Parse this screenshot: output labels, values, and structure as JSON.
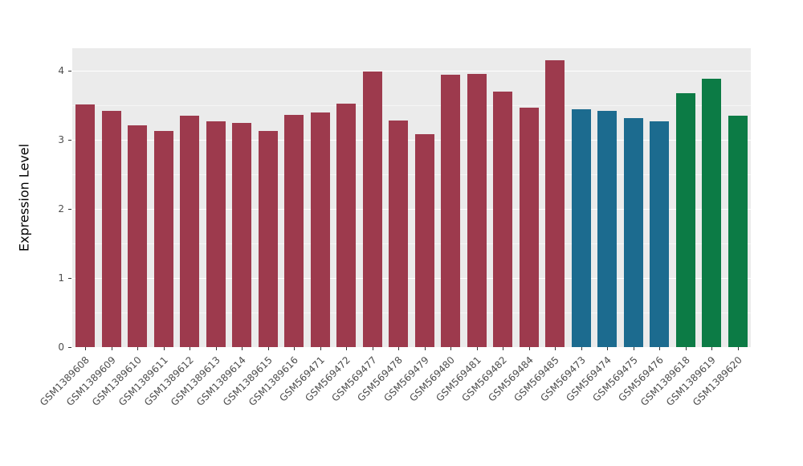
{
  "chart_data": {
    "type": "bar",
    "title": "",
    "xlabel": "",
    "ylabel": "Expression Level",
    "ylim": [
      0,
      4.33
    ],
    "yticks": [
      0,
      1,
      2,
      3,
      4
    ],
    "yticks_minor": [
      0.5,
      1.5,
      2.5,
      3.5
    ],
    "grid": "on",
    "legend": "none",
    "panel_background": "#ebebeb",
    "gridline_color": "#ffffff",
    "categories": [
      "GSM1389608",
      "GSM1389609",
      "GSM1389610",
      "GSM1389611",
      "GSM1389612",
      "GSM1389613",
      "GSM1389614",
      "GSM1389615",
      "GSM1389616",
      "GSM569471",
      "GSM569472",
      "GSM569477",
      "GSM569478",
      "GSM569479",
      "GSM569480",
      "GSM569481",
      "GSM569482",
      "GSM569484",
      "GSM569485",
      "GSM569473",
      "GSM569474",
      "GSM569475",
      "GSM569476",
      "GSM1389618",
      "GSM1389619",
      "GSM1389620"
    ],
    "values": [
      3.52,
      3.42,
      3.21,
      3.13,
      3.35,
      3.27,
      3.25,
      3.13,
      3.36,
      3.4,
      3.53,
      3.99,
      3.28,
      3.08,
      3.95,
      3.96,
      3.7,
      3.47,
      4.16,
      3.45,
      3.42,
      3.32,
      3.27,
      3.68,
      3.89,
      3.35
    ],
    "bar_groups": [
      "A",
      "A",
      "A",
      "A",
      "A",
      "A",
      "A",
      "A",
      "A",
      "A",
      "A",
      "A",
      "A",
      "A",
      "A",
      "A",
      "A",
      "A",
      "A",
      "B",
      "B",
      "B",
      "B",
      "C",
      "C",
      "C"
    ],
    "group_colors": {
      "A": "#9d3a4d",
      "B": "#1c6b8f",
      "C": "#0c7b45"
    }
  }
}
